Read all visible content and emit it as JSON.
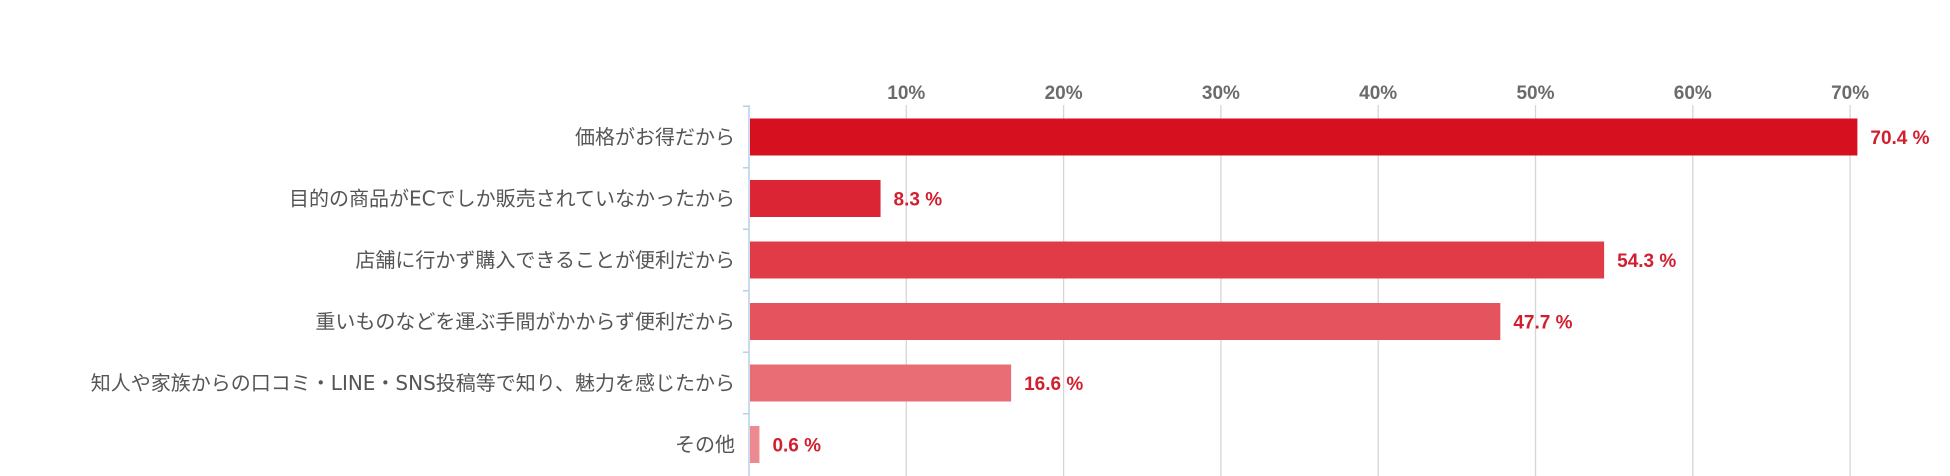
{
  "chart_data": {
    "type": "bar",
    "orientation": "horizontal",
    "categories": [
      "価格がお得だから",
      "目的の商品がECでしか販売されていなかったから",
      "店舗に行かず購入できることが便利だから",
      "重いものなどを運ぶ手間がかからず便利だから",
      "知人や家族からの口コミ・LINE・SNS投稿等で知り、魅力を感じたから",
      "その他"
    ],
    "values": [
      70.4,
      8.3,
      54.3,
      47.7,
      16.6,
      0.6
    ],
    "value_labels": [
      "70.4 %",
      "8.3 %",
      "54.3 %",
      "47.7 %",
      "16.6 %",
      "0.6 %"
    ],
    "unit": "%",
    "xlim": [
      0,
      70
    ],
    "xticks": [
      10,
      20,
      30,
      40,
      50,
      60,
      70
    ],
    "xtick_labels": [
      "10%",
      "20%",
      "30%",
      "40%",
      "50%",
      "60%",
      "70%"
    ],
    "x_axis_position": "top",
    "grid": true,
    "bar_colors": [
      "#d7101f",
      "#dc2534",
      "#e03b47",
      "#e4535e",
      "#e86d75",
      "#ed8a91"
    ],
    "label_color": "#d21f2f",
    "title": "",
    "xlabel": "",
    "ylabel": ""
  }
}
